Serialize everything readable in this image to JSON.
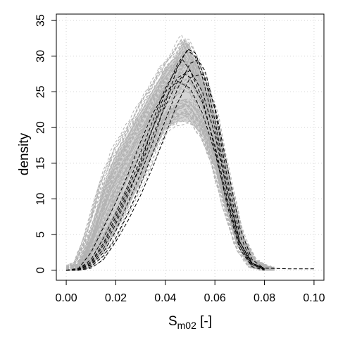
{
  "chart_data": {
    "type": "line",
    "title": "",
    "xlabel": "S",
    "xlabel_subscript": "m02",
    "xlabel_suffix": " [-]",
    "ylabel": "density",
    "xlim": [
      -0.004,
      0.104
    ],
    "ylim": [
      -1.4,
      35.9
    ],
    "x_ticks": [
      0.0,
      0.02,
      0.04,
      0.06,
      0.08,
      0.1
    ],
    "x_tick_labels": [
      "0.00",
      "0.02",
      "0.04",
      "0.06",
      "0.08",
      "0.10"
    ],
    "y_ticks": [
      0,
      5,
      10,
      15,
      20,
      25,
      30,
      35
    ],
    "y_tick_labels": [
      "0",
      "5",
      "10",
      "15",
      "20",
      "25",
      "30",
      "35"
    ],
    "grid": true,
    "legend": "none",
    "colors": {
      "ensemble": "#b3b3b3",
      "observed": "#000000",
      "grid": "#d3d3d3",
      "axis": "#000000"
    },
    "series": [
      {
        "group": "ensemble",
        "style": "dashed",
        "description_points": "envelope of many simulated density curves",
        "upper_envelope": {
          "x": [
            0.0,
            0.005,
            0.01,
            0.015,
            0.02,
            0.025,
            0.03,
            0.035,
            0.04,
            0.045,
            0.048,
            0.05,
            0.055,
            0.06,
            0.065,
            0.07,
            0.075,
            0.08,
            0.085
          ],
          "y": [
            0.2,
            1.0,
            6.0,
            12.5,
            17.0,
            20.0,
            23.0,
            26.0,
            29.0,
            31.0,
            33.5,
            32.0,
            28.0,
            22.0,
            13.0,
            5.0,
            1.5,
            0.5,
            0.1
          ]
        },
        "lower_envelope": {
          "x": [
            0.0,
            0.005,
            0.01,
            0.015,
            0.02,
            0.025,
            0.03,
            0.035,
            0.04,
            0.045,
            0.05,
            0.055,
            0.06,
            0.065,
            0.07,
            0.075,
            0.08
          ],
          "y": [
            0.0,
            0.0,
            0.5,
            2.0,
            5.0,
            8.5,
            12.0,
            16.0,
            19.5,
            20.5,
            20.5,
            18.5,
            14.0,
            8.0,
            3.0,
            0.5,
            0.0
          ]
        }
      },
      {
        "group": "observed",
        "style": "dashed",
        "curves": [
          {
            "x": [
              0.0,
              0.005,
              0.01,
              0.015,
              0.02,
              0.025,
              0.03,
              0.035,
              0.04,
              0.045,
              0.049,
              0.052,
              0.055,
              0.06,
              0.065,
              0.07,
              0.075,
              0.08,
              0.09,
              0.1
            ],
            "y": [
              0.0,
              0.1,
              0.8,
              3.0,
              6.5,
              10.5,
              15.0,
              20.0,
              25.0,
              29.0,
              30.8,
              30.0,
              27.0,
              20.0,
              11.0,
              4.0,
              1.0,
              0.3,
              0.2,
              0.2
            ]
          },
          {
            "x": [
              0.0,
              0.005,
              0.01,
              0.015,
              0.02,
              0.025,
              0.03,
              0.035,
              0.04,
              0.045,
              0.047,
              0.05,
              0.055,
              0.06,
              0.065,
              0.07,
              0.075,
              0.08
            ],
            "y": [
              0.0,
              0.2,
              1.5,
              4.5,
              8.0,
              12.0,
              16.5,
              21.0,
              25.5,
              28.5,
              29.5,
              28.0,
              24.0,
              17.0,
              9.0,
              3.0,
              0.5,
              0.0
            ]
          },
          {
            "x": [
              0.0,
              0.005,
              0.01,
              0.015,
              0.02,
              0.025,
              0.03,
              0.035,
              0.04,
              0.045,
              0.048,
              0.05,
              0.055,
              0.06,
              0.065,
              0.07,
              0.075
            ],
            "y": [
              0.0,
              0.1,
              1.0,
              3.5,
              7.0,
              11.0,
              14.5,
              19.0,
              23.0,
              26.5,
              27.5,
              27.0,
              23.5,
              17.5,
              10.0,
              3.5,
              0.5
            ]
          },
          {
            "x": [
              0.0,
              0.005,
              0.01,
              0.015,
              0.02,
              0.025,
              0.03,
              0.035,
              0.04,
              0.045,
              0.05,
              0.053,
              0.056,
              0.06,
              0.065,
              0.07,
              0.075,
              0.08
            ],
            "y": [
              0.0,
              0.0,
              0.5,
              2.0,
              4.5,
              8.0,
              12.0,
              16.5,
              21.0,
              25.5,
              29.0,
              29.5,
              28.0,
              22.5,
              13.0,
              5.0,
              1.0,
              0.2
            ]
          },
          {
            "x": [
              0.0,
              0.005,
              0.01,
              0.015,
              0.02,
              0.025,
              0.03,
              0.035,
              0.04,
              0.045,
              0.05,
              0.055,
              0.06,
              0.065,
              0.07,
              0.075,
              0.08
            ],
            "y": [
              0.0,
              0.3,
              2.5,
              6.0,
              9.5,
              13.5,
              18.0,
              22.0,
              25.0,
              26.5,
              25.5,
              22.0,
              16.5,
              9.5,
              3.5,
              0.8,
              0.1
            ]
          },
          {
            "x": [
              0.0,
              0.005,
              0.01,
              0.015,
              0.02,
              0.025,
              0.03,
              0.035,
              0.04,
              0.045,
              0.05,
              0.055,
              0.06,
              0.065,
              0.07,
              0.075,
              0.08
            ],
            "y": [
              0.0,
              0.0,
              0.3,
              1.5,
              4.0,
              7.0,
              10.5,
              14.5,
              19.0,
              23.5,
              27.0,
              27.5,
              23.0,
              14.5,
              6.0,
              1.5,
              0.2
            ]
          },
          {
            "x": [
              0.0,
              0.005,
              0.01,
              0.015,
              0.02,
              0.025,
              0.03,
              0.035,
              0.04,
              0.045,
              0.049,
              0.052,
              0.056,
              0.06,
              0.065,
              0.07,
              0.075,
              0.08
            ],
            "y": [
              0.0,
              0.1,
              0.7,
              2.5,
              5.5,
              9.5,
              13.5,
              18.0,
              23.5,
              28.5,
              31.0,
              30.5,
              27.0,
              21.0,
              12.0,
              4.0,
              0.8,
              0.1
            ]
          },
          {
            "x": [
              0.0,
              0.005,
              0.01,
              0.015,
              0.02,
              0.025,
              0.03,
              0.035,
              0.04,
              0.045,
              0.05,
              0.055,
              0.06,
              0.065,
              0.07,
              0.075,
              0.08
            ],
            "y": [
              0.0,
              0.2,
              1.2,
              3.8,
              7.5,
              11.5,
              15.5,
              20.0,
              24.0,
              27.0,
              28.0,
              25.0,
              19.0,
              11.0,
              4.0,
              1.0,
              0.1
            ]
          }
        ]
      }
    ]
  }
}
